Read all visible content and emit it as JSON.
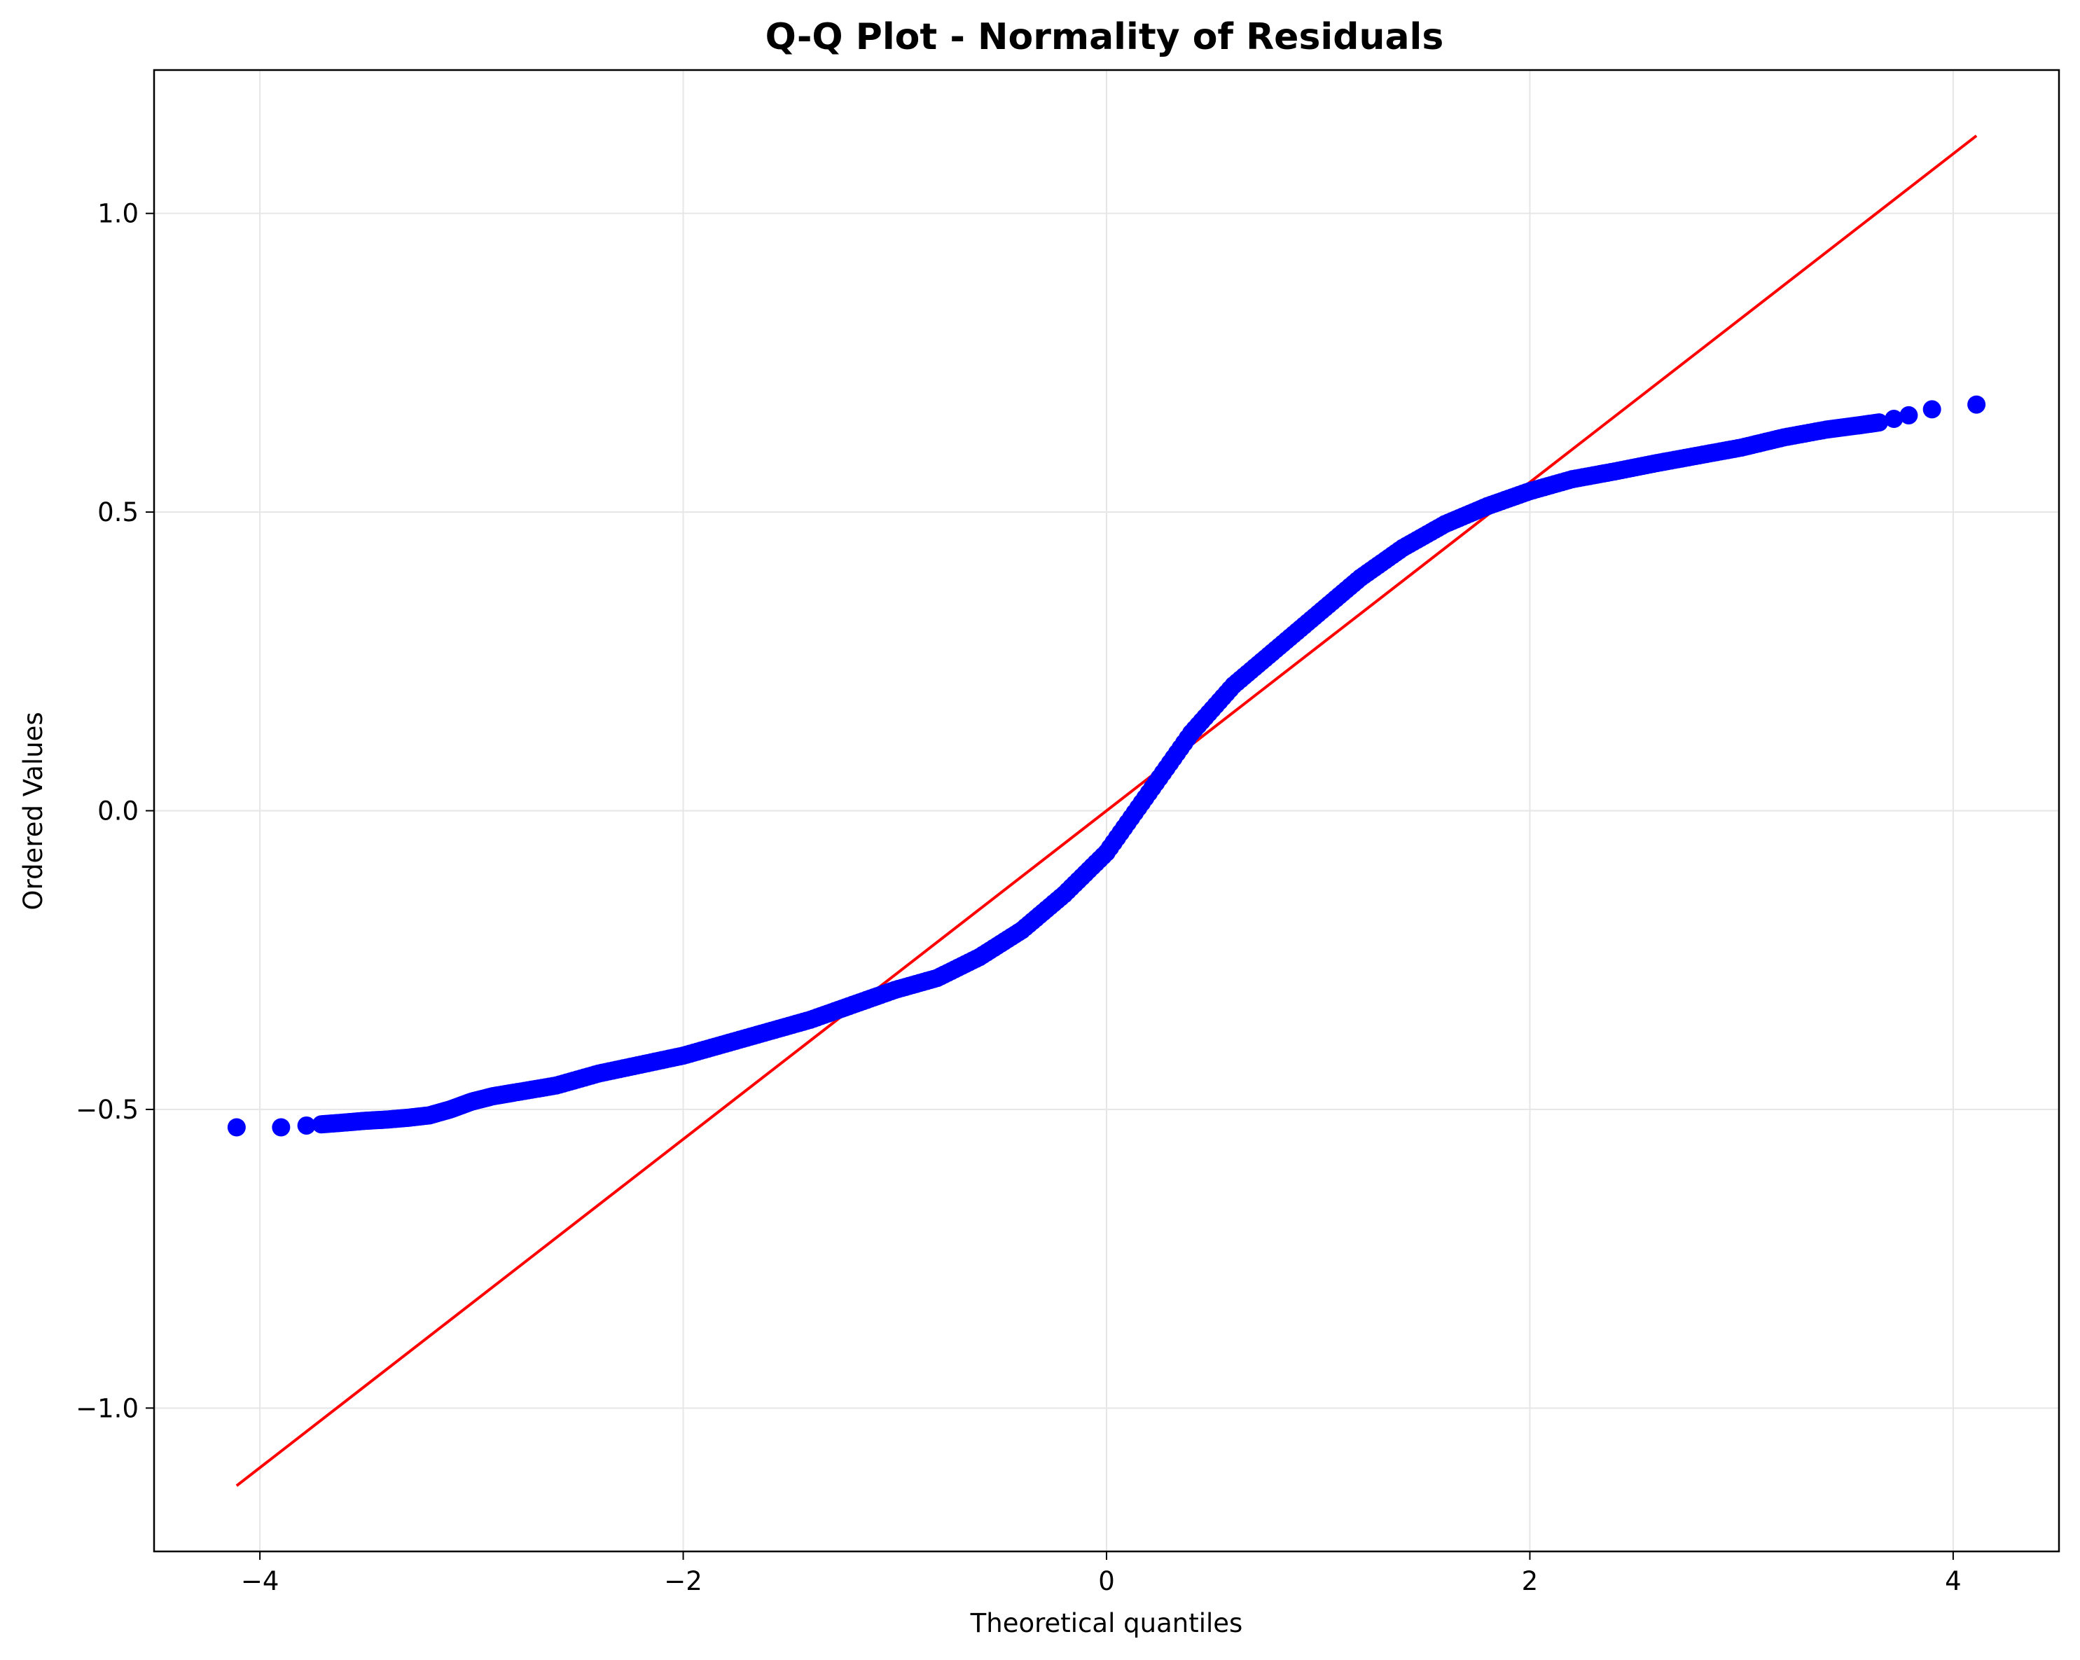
{
  "chart_data": {
    "type": "scatter",
    "title": "Q-Q Plot - Normality of Residuals",
    "xlabel": "Theoretical quantiles",
    "ylabel": "Ordered Values",
    "xlim": [
      -4.5,
      4.5
    ],
    "ylim": [
      -1.24,
      1.24
    ],
    "x_ticks": [
      -4,
      -2,
      0,
      2,
      4
    ],
    "y_ticks": [
      -1.0,
      -0.5,
      0.0,
      0.5,
      1.0
    ],
    "x_tick_labels": [
      "−4",
      "−2",
      "0",
      "2",
      "4"
    ],
    "y_tick_labels": [
      "−1.0",
      "−0.5",
      "0.0",
      "0.5",
      "1.0"
    ],
    "grid": true,
    "series": [
      {
        "kind": "points",
        "color": "#0000ff",
        "x": [
          -4.11,
          -3.9,
          -3.78,
          -3.71,
          -3.6,
          -3.5,
          -3.4,
          -3.3,
          -3.2,
          -3.1,
          -3.0,
          -2.9,
          -2.8,
          -2.6,
          -2.4,
          -2.2,
          -2.0,
          -1.8,
          -1.6,
          -1.4,
          -1.2,
          -1.0,
          -0.8,
          -0.6,
          -0.4,
          -0.2,
          0.0,
          0.2,
          0.4,
          0.6,
          0.8,
          1.0,
          1.2,
          1.4,
          1.6,
          1.8,
          2.0,
          2.2,
          2.4,
          2.6,
          2.8,
          3.0,
          3.2,
          3.4,
          3.55,
          3.65,
          3.72,
          3.79,
          3.9,
          4.11
        ],
        "y": [
          -0.53,
          -0.53,
          -0.527,
          -0.525,
          -0.522,
          -0.519,
          -0.517,
          -0.514,
          -0.51,
          -0.5,
          -0.487,
          -0.478,
          -0.472,
          -0.46,
          -0.44,
          -0.425,
          -0.41,
          -0.39,
          -0.37,
          -0.35,
          -0.325,
          -0.3,
          -0.28,
          -0.245,
          -0.2,
          -0.14,
          -0.07,
          0.03,
          0.13,
          0.21,
          0.27,
          0.33,
          0.39,
          0.44,
          0.48,
          0.51,
          0.535,
          0.555,
          0.568,
          0.582,
          0.595,
          0.608,
          0.625,
          0.638,
          0.645,
          0.65,
          0.656,
          0.662,
          0.672,
          0.68
        ]
      },
      {
        "kind": "line",
        "color": "#ff0000",
        "x": [
          -4.11,
          4.11
        ],
        "y": [
          -1.13,
          1.13
        ]
      }
    ]
  }
}
